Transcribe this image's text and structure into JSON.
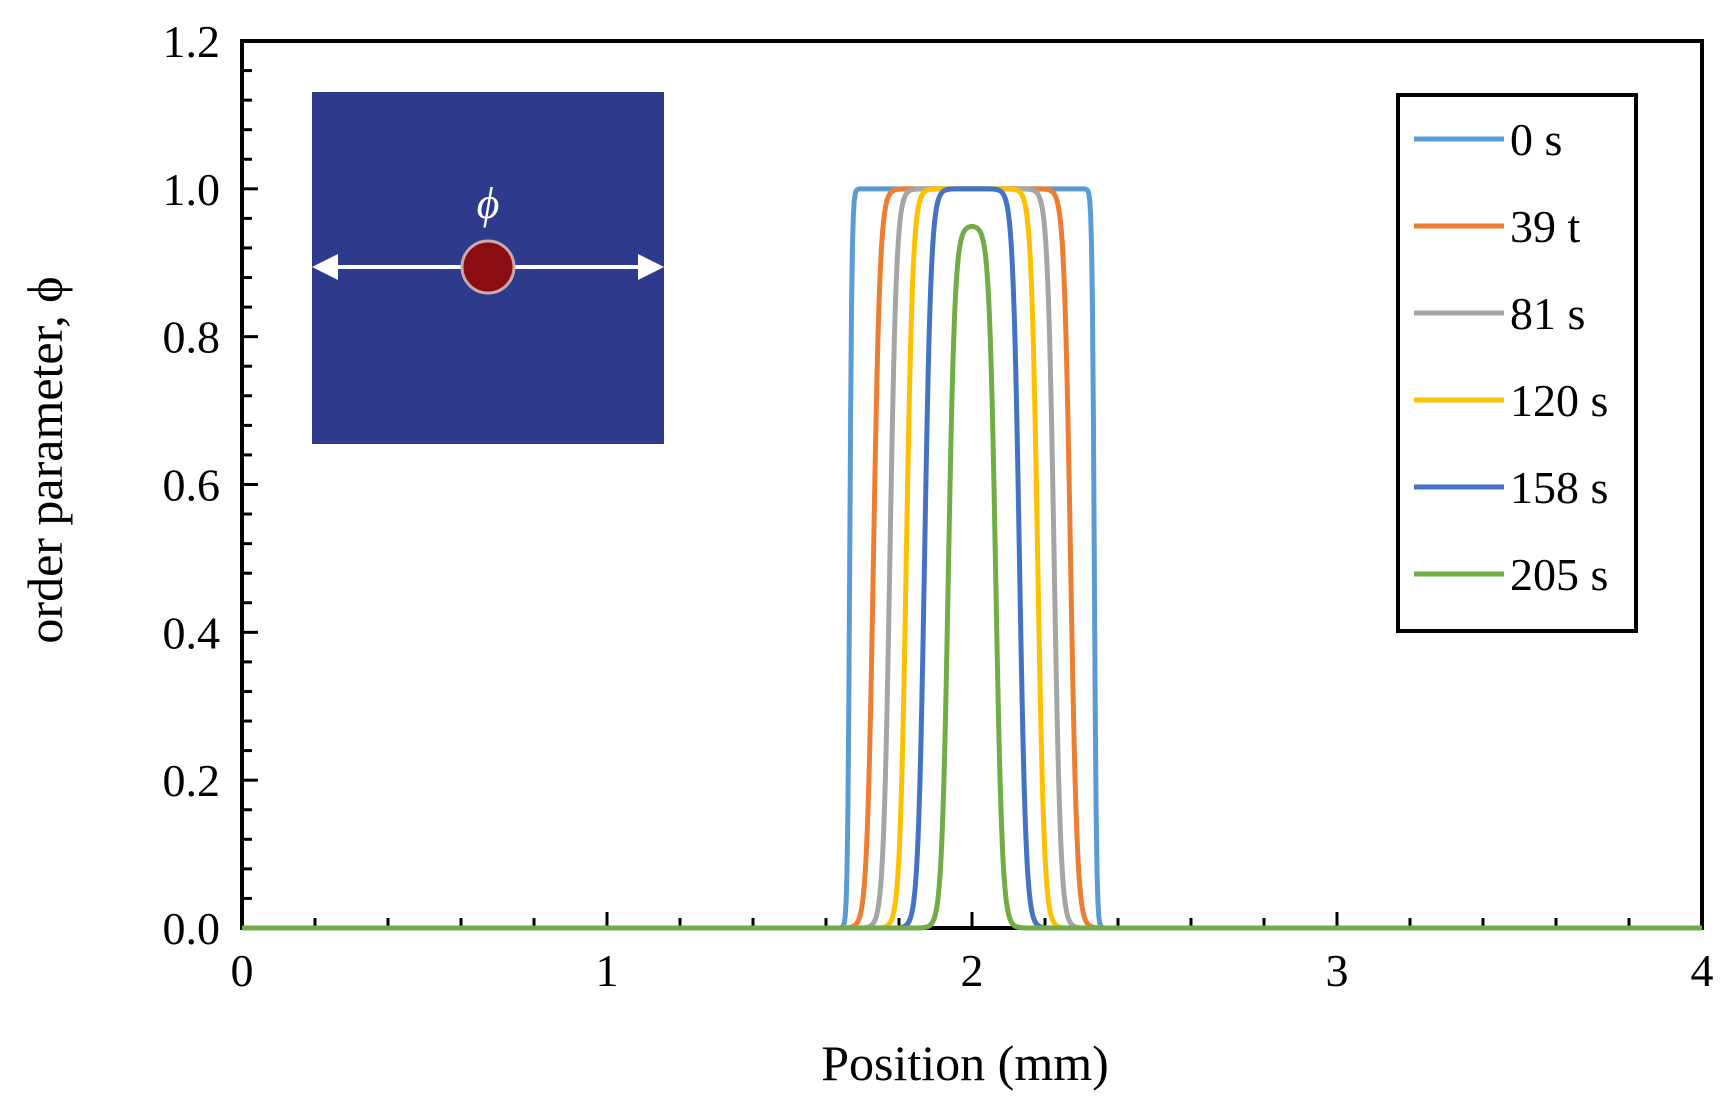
{
  "chart_data": {
    "type": "line",
    "xlabel": "Position (mm)",
    "ylabel": "order parameter, ϕ",
    "xlim": [
      0,
      4
    ],
    "ylim": [
      0,
      1.2
    ],
    "x_ticks": [
      "0",
      "1",
      "2",
      "3",
      "4"
    ],
    "y_ticks": [
      "0.0",
      "0.2",
      "0.4",
      "0.6",
      "0.8",
      "1.0",
      "1.2"
    ],
    "grid": false,
    "legend_position": "top-right",
    "inset": {
      "symbol": "ϕ",
      "description_colors": {
        "background": "#2e3a8c",
        "particle": "#8b0d12",
        "arrow": "#ffffff"
      }
    },
    "series": [
      {
        "name": "0 s",
        "color": "#5b9bd5",
        "center": 2.0,
        "half_width": 0.335,
        "edge_width": 0.006,
        "peak": 1.0
      },
      {
        "name": "39 t",
        "color": "#ed7d31",
        "center": 2.0,
        "half_width": 0.27,
        "edge_width": 0.018,
        "peak": 1.0
      },
      {
        "name": "81 s",
        "color": "#a5a5a5",
        "center": 2.0,
        "half_width": 0.225,
        "edge_width": 0.018,
        "peak": 1.0
      },
      {
        "name": "120 s",
        "color": "#ffc000",
        "center": 2.0,
        "half_width": 0.18,
        "edge_width": 0.018,
        "peak": 1.0
      },
      {
        "name": "158 s",
        "color": "#4472c4",
        "center": 2.0,
        "half_width": 0.13,
        "edge_width": 0.018,
        "peak": 1.0
      },
      {
        "name": "205 s",
        "color": "#70ad47",
        "center": 2.0,
        "half_width": 0.065,
        "edge_width": 0.018,
        "peak": 0.95
      }
    ]
  }
}
